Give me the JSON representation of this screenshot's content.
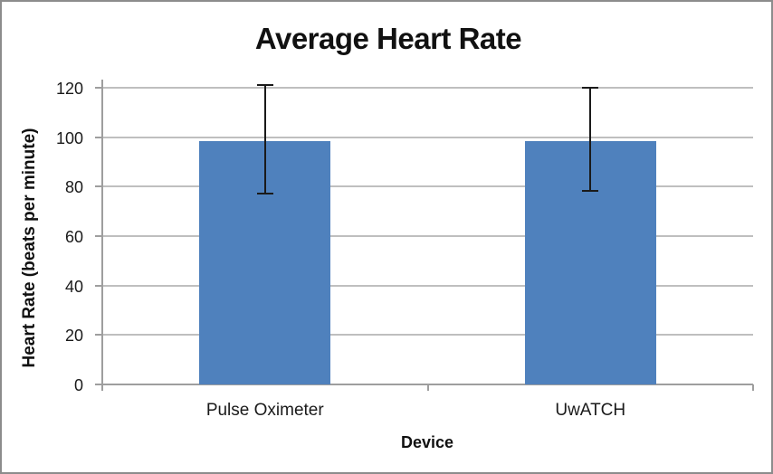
{
  "chart_data": {
    "type": "bar",
    "title": "Average Heart Rate",
    "xlabel": "Device",
    "ylabel": "Heart Rate (beats per minute)",
    "categories": [
      "Pulse Oximeter",
      "UwATCH"
    ],
    "values": [
      98.5,
      98.3
    ],
    "error_bars": [
      {
        "low": 77.2,
        "high": 121.0
      },
      {
        "low": 78.3,
        "high": 120.0
      }
    ],
    "ylim": [
      0,
      120
    ],
    "yticks": [
      0,
      20,
      40,
      60,
      80,
      100,
      120
    ],
    "grid": true,
    "legend_position": "none",
    "bar_color": "#4F81BD",
    "gridline_color": "#BFBFBF",
    "axis_color": "#9E9E9E",
    "error_bar_color": "#1A1A1A",
    "text_color": "#1A1A1A"
  }
}
